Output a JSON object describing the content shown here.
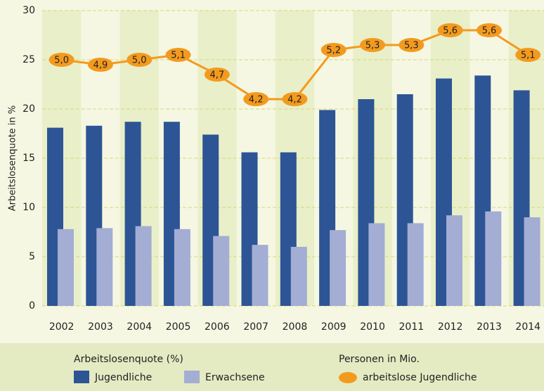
{
  "chart_data": {
    "type": "bar",
    "y_axis_label": "Arbeitslosenquote in %",
    "categories": [
      "2002",
      "2003",
      "2004",
      "2005",
      "2006",
      "2007",
      "2008",
      "2009",
      "2010",
      "2011",
      "2012",
      "2013",
      "2014"
    ],
    "ylim": [
      0,
      30
    ],
    "yticks": [
      0,
      5,
      10,
      15,
      20,
      25,
      30
    ],
    "grid": true,
    "y2lim": [
      0,
      6
    ],
    "legend_groups": [
      "Arbeitslosenquote (%)",
      "Personen in Mio."
    ],
    "series": [
      {
        "name": "Jugendliche",
        "color": "#2d5595",
        "values": [
          18.1,
          18.3,
          18.7,
          18.7,
          17.4,
          15.6,
          15.6,
          19.9,
          21.0,
          21.5,
          23.1,
          23.4,
          21.9
        ]
      },
      {
        "name": "Erwachsene",
        "color": "#a4add3",
        "values": [
          7.8,
          7.9,
          8.1,
          7.8,
          7.1,
          6.2,
          6.0,
          7.7,
          8.4,
          8.4,
          9.2,
          9.6,
          9.0
        ]
      },
      {
        "name": "arbeitslose Jugendliche",
        "type": "line",
        "axis": "y2",
        "color": "#f39a1e",
        "values": [
          5.0,
          4.9,
          5.0,
          5.1,
          4.7,
          4.2,
          4.2,
          5.2,
          5.3,
          5.3,
          5.6,
          5.6,
          5.1
        ],
        "value_labels": [
          "5,0",
          "4,9",
          "5,0",
          "5,1",
          "4,7",
          "4,2",
          "4,2",
          "5,2",
          "5,3",
          "5,3",
          "5,6",
          "5,6",
          "5,1"
        ]
      }
    ]
  }
}
